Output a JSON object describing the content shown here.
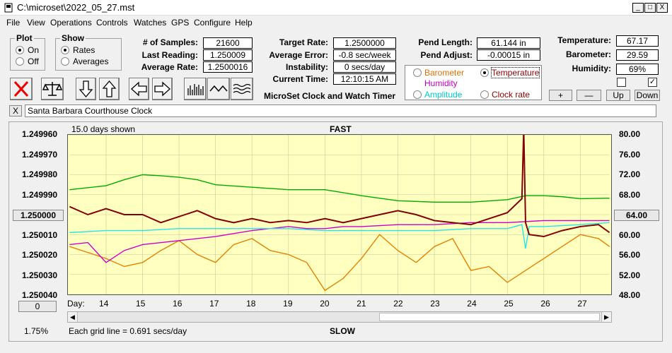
{
  "window": {
    "title": "C:\\microset\\2022_05_27.mst",
    "minimize": "_",
    "restore": "□",
    "close": "X"
  },
  "menu": [
    "File",
    "View",
    "Operations",
    "Controls",
    "Watches",
    "GPS",
    "Configure",
    "Help"
  ],
  "plot_group": {
    "title": "Plot",
    "on": "On",
    "off": "Off",
    "selected": "On"
  },
  "show_group": {
    "title": "Show",
    "rates": "Rates",
    "averages": "Averages",
    "selected": "Rates"
  },
  "stats": {
    "samples_label": "# of Samples:",
    "samples": "21600",
    "last_label": "Last Reading:",
    "last": "1.250009",
    "avg_label": "Average Rate:",
    "avg": "1.2500016"
  },
  "targets": {
    "target_label": "Target Rate:",
    "target": "1.2500000",
    "error_label": "Average Error:",
    "error": "-0.8 sec/week",
    "instab_label": "Instability:",
    "instab": "0 secs/day",
    "time_label": "Current Time:",
    "time": "12:10:15 AM",
    "caption": "MicroSet Clock and Watch Timer"
  },
  "pend": {
    "length_label": "Pend Length:",
    "length": "61.144 in",
    "adjust_label": "Pend Adjust:",
    "adjust": "-0.00015 in"
  },
  "sensor_options": [
    {
      "label": "Barometer",
      "color": "#e07000",
      "selected": false
    },
    {
      "label": "Temperature",
      "color": "#8b0000",
      "selected": true
    },
    {
      "label": "Humidity",
      "color": "#c000c0",
      "selected": false
    },
    {
      "label": "Amplitude",
      "color": "#00c8c8",
      "selected": false
    },
    {
      "label": "Clock rate",
      "color": "#8b0000",
      "selected": false
    }
  ],
  "env": {
    "temp_label": "Temperature:",
    "temp": "67.17",
    "baro_label": "Barometer:",
    "baro": "29.59",
    "hum_label": "Humidity:",
    "hum": "69%"
  },
  "checkboxes": [
    {
      "checked": false
    },
    {
      "checked": true
    }
  ],
  "scale_buttons": {
    "plus": "+",
    "minus": "—",
    "up": "Up",
    "down": "Down"
  },
  "clock_name": "Santa Barbara Courthouse Clock",
  "clear_x": "X",
  "chart_data": {
    "type": "line",
    "top_label": "FAST",
    "bottom_label": "SLOW",
    "days_shown": "15.0 days shown",
    "grid_note": "Each grid line = 0.691 secs/day",
    "percent": "1.75%",
    "day_label": "Day:",
    "y_left_ticks": [
      "1.249960",
      "1.249970",
      "1.249980",
      "1.249990",
      "1.250000",
      "1.250010",
      "1.250020",
      "1.250030",
      "1.250040"
    ],
    "y_right_ticks": [
      "80.00",
      "76.00",
      "72.00",
      "68.00",
      "64.00",
      "60.00",
      "56.00",
      "52.00",
      "48.00"
    ],
    "x_days": [
      14,
      15,
      16,
      17,
      18,
      19,
      20,
      21,
      22,
      23,
      24,
      25,
      26,
      27
    ],
    "x_range": [
      13,
      27.8
    ],
    "left_button": "1.250000",
    "right_button": "64.00",
    "bottom_left_button": "0",
    "series": [
      {
        "name": "Barometer",
        "color": "#e08000",
        "x": [
          13,
          13.5,
          14,
          14.5,
          15,
          15.5,
          16,
          16.5,
          17,
          17.5,
          18,
          18.5,
          19,
          19.5,
          20,
          20.5,
          21,
          21.5,
          22,
          22.5,
          23,
          23.5,
          24,
          24.5,
          25,
          25.5,
          26,
          26.5,
          27,
          27.5,
          27.8
        ],
        "y": [
          1.250016,
          1.250019,
          1.250022,
          1.250026,
          1.250024,
          1.250018,
          1.250013,
          1.25002,
          1.250024,
          1.250015,
          1.250012,
          1.250018,
          1.25002,
          1.250024,
          1.250038,
          1.250032,
          1.250022,
          1.25001,
          1.250018,
          1.250024,
          1.250016,
          1.250012,
          1.250028,
          1.250026,
          1.250034,
          1.250028,
          1.250022,
          1.250016,
          1.25001,
          1.250012,
          1.250016
        ]
      },
      {
        "name": "Temperature",
        "color": "#00aa00",
        "x": [
          13,
          14,
          14.5,
          15,
          15.5,
          16,
          16.5,
          17,
          18,
          19,
          20,
          21,
          22,
          23,
          24,
          25,
          25.5,
          26,
          26.5,
          27,
          27.8
        ],
        "y": [
          69.0,
          69.8,
          71.0,
          72.0,
          71.8,
          71.5,
          71.0,
          70.0,
          69.5,
          69.0,
          69.0,
          67.8,
          66.8,
          66.5,
          66.5,
          67.0,
          67.8,
          67.8,
          67.6,
          67.2,
          67.3
        ]
      },
      {
        "name": "Humidity",
        "color": "#cc00cc",
        "x": [
          13,
          13.5,
          14,
          14.5,
          15,
          16,
          17,
          18,
          19,
          19.5,
          20,
          20.5,
          21,
          22,
          23,
          24,
          25,
          26,
          27,
          27.8
        ],
        "y": [
          1.250015,
          1.250014,
          1.250024,
          1.250018,
          1.250015,
          1.250013,
          1.250011,
          1.250008,
          1.250006,
          1.250007,
          1.250007,
          1.250006,
          1.250006,
          1.250005,
          1.250005,
          1.250004,
          1.250004,
          1.250003,
          1.250003,
          1.250003
        ]
      },
      {
        "name": "Amplitude",
        "color": "#22e6e6",
        "x": [
          13,
          14,
          15,
          16,
          17,
          18,
          19,
          20,
          21,
          22,
          23,
          24,
          25,
          25.4,
          25.5,
          25.6,
          26,
          27,
          27.8
        ],
        "y": [
          1.250009,
          1.250008,
          1.250008,
          1.250007,
          1.250007,
          1.250007,
          1.250007,
          1.250008,
          1.250008,
          1.250008,
          1.250008,
          1.250007,
          1.250007,
          1.250005,
          1.250017,
          1.250006,
          1.250006,
          1.250005,
          1.250004
        ]
      },
      {
        "name": "Clock rate",
        "color": "#800000",
        "x": [
          13,
          13.5,
          14,
          14.5,
          15,
          15.5,
          16,
          16.5,
          17,
          17.5,
          18,
          18.5,
          19,
          19.5,
          20,
          20.5,
          21,
          21.5,
          22,
          22.5,
          23,
          23.5,
          24,
          24.5,
          25,
          25.4,
          25.45,
          25.5,
          25.6,
          26,
          26.5,
          27,
          27.5,
          27.8
        ],
        "y": [
          1.249996,
          1.25,
          1.249997,
          1.25,
          1.25,
          1.250004,
          1.250001,
          1.249998,
          1.250002,
          1.250004,
          1.250002,
          1.250004,
          1.250003,
          1.250004,
          1.250002,
          1.250004,
          1.250002,
          1.25,
          1.249998,
          1.25,
          1.250003,
          1.250004,
          1.250005,
          1.250002,
          1.249999,
          1.249992,
          1.249957,
          1.250004,
          1.25001,
          1.250011,
          1.250008,
          1.250006,
          1.250005,
          1.250009
        ]
      }
    ]
  }
}
